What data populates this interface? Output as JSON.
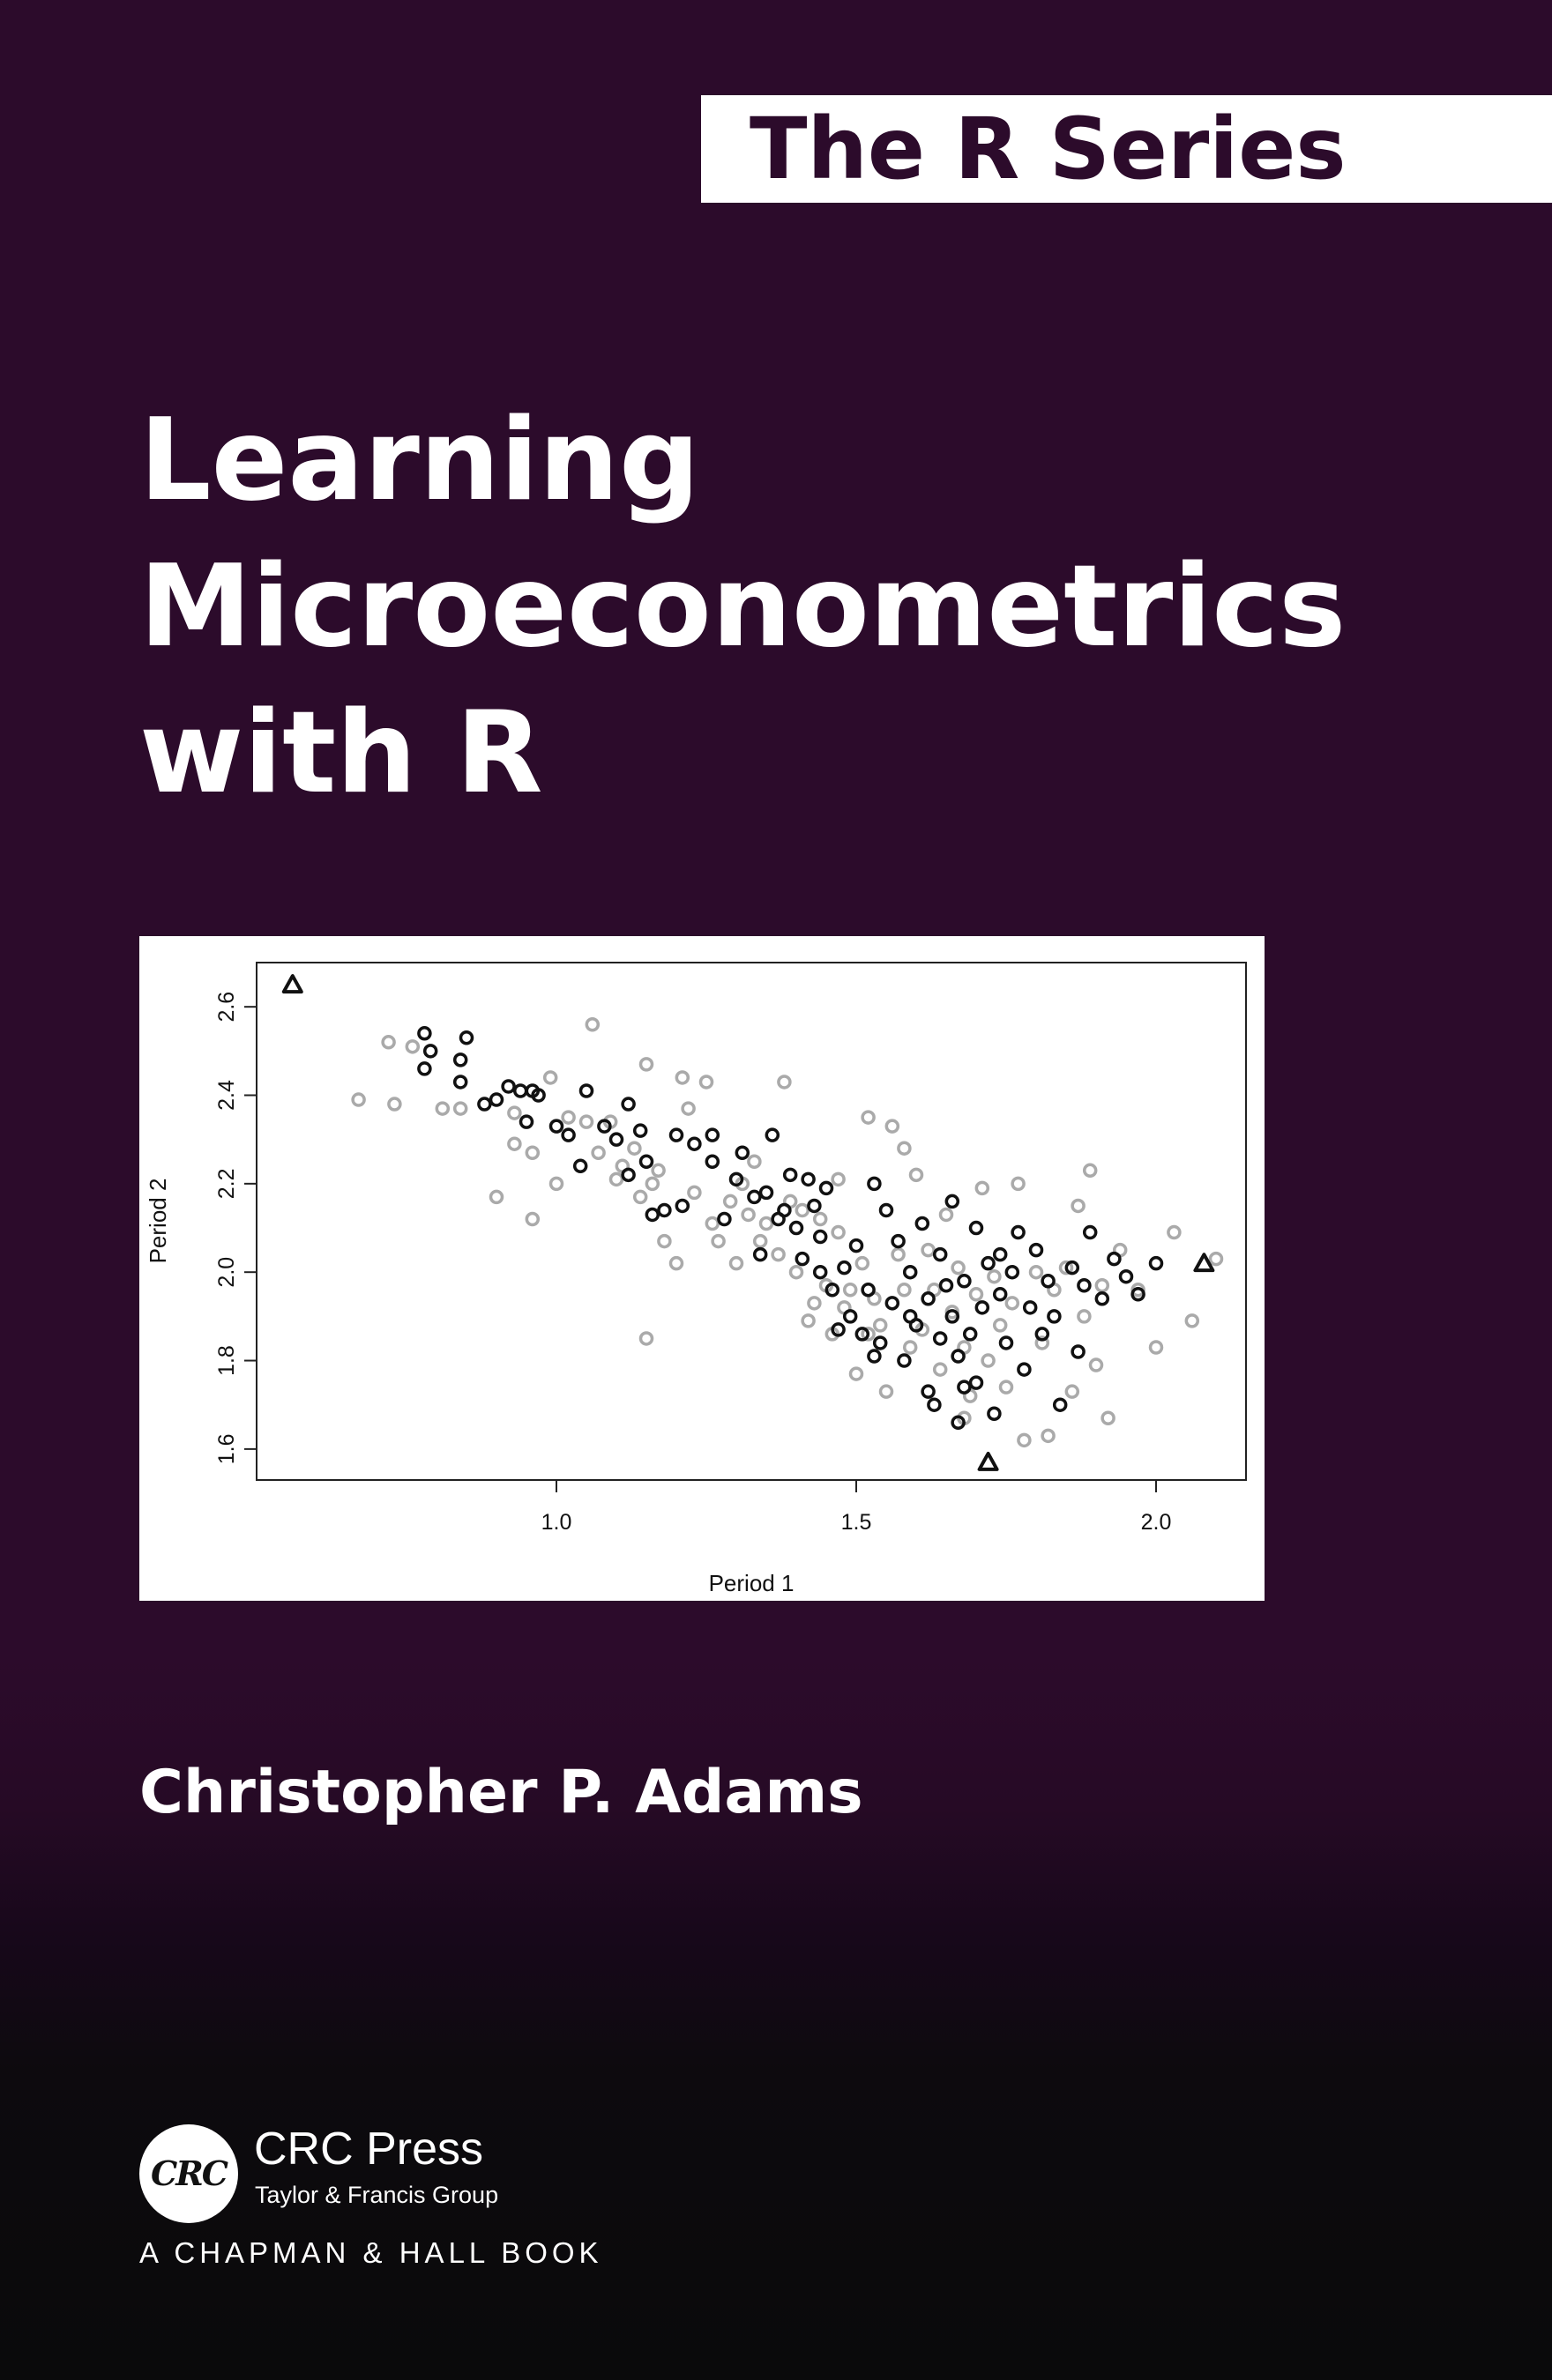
{
  "series": {
    "label": "The R Series"
  },
  "book": {
    "title_lines": [
      "Learning",
      "Microeconometrics",
      "with R"
    ],
    "author": "Christopher P. Adams"
  },
  "publisher": {
    "logo_text": "CRC",
    "name": "CRC Press",
    "group": "Taylor & Francis Group",
    "imprint": "A CHAPMAN & HALL BOOK"
  },
  "colors": {
    "background": "#2c0b2b",
    "banner": "#ffffff",
    "banner_text": "#2c0b2b",
    "title_text": "#ffffff"
  },
  "chart_data": {
    "type": "scatter",
    "title": "",
    "xlabel": "Period 1",
    "ylabel": "Period 2",
    "xlim": [
      0.5,
      2.15
    ],
    "ylim": [
      1.53,
      2.7
    ],
    "x_ticks": [
      1.0,
      1.5,
      2.0
    ],
    "x_tick_labels": [
      "1.0",
      "1.5",
      "2.0"
    ],
    "y_ticks": [
      1.6,
      1.8,
      2.0,
      2.2,
      2.4,
      2.6
    ],
    "y_tick_labels": [
      "1.6",
      "1.8",
      "2.0",
      "2.2",
      "2.4",
      "2.6"
    ],
    "grid": false,
    "legend": "none",
    "series": [
      {
        "marker": "open-circle",
        "color": "#111111",
        "points": [
          [
            0.78,
            2.54
          ],
          [
            0.79,
            2.5
          ],
          [
            0.78,
            2.46
          ],
          [
            0.85,
            2.53
          ],
          [
            0.84,
            2.48
          ],
          [
            0.84,
            2.43
          ],
          [
            0.88,
            2.38
          ],
          [
            0.9,
            2.39
          ],
          [
            0.92,
            2.42
          ],
          [
            0.94,
            2.41
          ],
          [
            0.96,
            2.41
          ],
          [
            0.95,
            2.34
          ],
          [
            0.97,
            2.4
          ],
          [
            1.0,
            2.33
          ],
          [
            1.02,
            2.31
          ],
          [
            1.05,
            2.41
          ],
          [
            1.04,
            2.24
          ],
          [
            1.08,
            2.33
          ],
          [
            1.1,
            2.3
          ],
          [
            1.12,
            2.22
          ],
          [
            1.14,
            2.32
          ],
          [
            1.12,
            2.38
          ],
          [
            1.15,
            2.25
          ],
          [
            1.18,
            2.14
          ],
          [
            1.2,
            2.31
          ],
          [
            1.21,
            2.15
          ],
          [
            1.23,
            2.29
          ],
          [
            1.26,
            2.25
          ],
          [
            1.28,
            2.12
          ],
          [
            1.3,
            2.21
          ],
          [
            1.31,
            2.27
          ],
          [
            1.33,
            2.17
          ],
          [
            1.34,
            2.04
          ],
          [
            1.36,
            2.31
          ],
          [
            1.35,
            2.18
          ],
          [
            1.38,
            2.14
          ],
          [
            1.39,
            2.22
          ],
          [
            1.4,
            2.1
          ],
          [
            1.41,
            2.03
          ],
          [
            1.42,
            2.21
          ],
          [
            1.43,
            2.15
          ],
          [
            1.44,
            2.08
          ],
          [
            1.45,
            2.19
          ],
          [
            1.46,
            1.96
          ],
          [
            1.47,
            1.87
          ],
          [
            1.48,
            2.01
          ],
          [
            1.49,
            1.9
          ],
          [
            1.5,
            2.06
          ],
          [
            1.51,
            1.86
          ],
          [
            1.52,
            1.96
          ],
          [
            1.53,
            2.2
          ],
          [
            1.54,
            1.84
          ],
          [
            1.55,
            2.14
          ],
          [
            1.56,
            1.93
          ],
          [
            1.57,
            2.07
          ],
          [
            1.58,
            1.8
          ],
          [
            1.59,
            2.0
          ],
          [
            1.6,
            1.88
          ],
          [
            1.61,
            2.11
          ],
          [
            1.62,
            1.94
          ],
          [
            1.62,
            1.73
          ],
          [
            1.63,
            1.7
          ],
          [
            1.64,
            2.04
          ],
          [
            1.64,
            1.85
          ],
          [
            1.65,
            1.97
          ],
          [
            1.66,
            1.9
          ],
          [
            1.66,
            2.16
          ],
          [
            1.67,
            1.81
          ],
          [
            1.67,
            1.66
          ],
          [
            1.68,
            1.98
          ],
          [
            1.69,
            1.86
          ],
          [
            1.7,
            2.1
          ],
          [
            1.7,
            1.75
          ],
          [
            1.71,
            1.92
          ],
          [
            1.72,
            2.02
          ],
          [
            1.73,
            1.68
          ],
          [
            1.74,
            1.95
          ],
          [
            1.75,
            1.84
          ],
          [
            1.76,
            2.0
          ],
          [
            1.77,
            2.09
          ],
          [
            1.78,
            1.78
          ],
          [
            1.79,
            1.92
          ],
          [
            1.8,
            2.05
          ],
          [
            1.81,
            1.86
          ],
          [
            1.82,
            1.98
          ],
          [
            1.83,
            1.9
          ],
          [
            1.84,
            1.7
          ],
          [
            1.86,
            2.01
          ],
          [
            1.87,
            1.82
          ],
          [
            1.88,
            1.97
          ],
          [
            1.89,
            2.09
          ],
          [
            1.91,
            1.94
          ],
          [
            1.93,
            2.03
          ],
          [
            1.95,
            1.99
          ],
          [
            1.97,
            1.95
          ],
          [
            2.0,
            2.02
          ],
          [
            1.16,
            2.13
          ],
          [
            1.26,
            2.31
          ],
          [
            1.37,
            2.12
          ],
          [
            1.44,
            2.0
          ],
          [
            1.53,
            1.81
          ],
          [
            1.59,
            1.9
          ],
          [
            1.68,
            1.74
          ],
          [
            1.74,
            2.04
          ]
        ]
      },
      {
        "marker": "open-circle",
        "color": "#aaaaaa",
        "points": [
          [
            0.67,
            2.39
          ],
          [
            0.72,
            2.52
          ],
          [
            0.73,
            2.38
          ],
          [
            0.76,
            2.51
          ],
          [
            0.81,
            2.37
          ],
          [
            0.84,
            2.37
          ],
          [
            0.9,
            2.17
          ],
          [
            0.93,
            2.36
          ],
          [
            0.93,
            2.29
          ],
          [
            0.96,
            2.27
          ],
          [
            0.96,
            2.12
          ],
          [
            0.99,
            2.44
          ],
          [
            1.0,
            2.2
          ],
          [
            1.02,
            2.35
          ],
          [
            1.05,
            2.34
          ],
          [
            1.06,
            2.56
          ],
          [
            1.07,
            2.27
          ],
          [
            1.09,
            2.34
          ],
          [
            1.1,
            2.21
          ],
          [
            1.11,
            2.24
          ],
          [
            1.13,
            2.28
          ],
          [
            1.14,
            2.17
          ],
          [
            1.15,
            2.47
          ],
          [
            1.16,
            2.2
          ],
          [
            1.17,
            2.23
          ],
          [
            1.18,
            2.07
          ],
          [
            1.2,
            2.02
          ],
          [
            1.21,
            2.44
          ],
          [
            1.22,
            2.37
          ],
          [
            1.23,
            2.18
          ],
          [
            1.25,
            2.43
          ],
          [
            1.26,
            2.11
          ],
          [
            1.27,
            2.07
          ],
          [
            1.29,
            2.16
          ],
          [
            1.3,
            2.02
          ],
          [
            1.31,
            2.2
          ],
          [
            1.32,
            2.13
          ],
          [
            1.33,
            2.25
          ],
          [
            1.34,
            2.07
          ],
          [
            1.35,
            2.11
          ],
          [
            1.37,
            2.04
          ],
          [
            1.38,
            2.43
          ],
          [
            1.39,
            2.16
          ],
          [
            1.4,
            2.0
          ],
          [
            1.41,
            2.14
          ],
          [
            1.42,
            1.89
          ],
          [
            1.43,
            1.93
          ],
          [
            1.44,
            2.12
          ],
          [
            1.45,
            1.97
          ],
          [
            1.46,
            1.86
          ],
          [
            1.47,
            2.09
          ],
          [
            1.48,
            1.92
          ],
          [
            1.49,
            1.96
          ],
          [
            1.5,
            1.77
          ],
          [
            1.51,
            2.02
          ],
          [
            1.52,
            2.35
          ],
          [
            1.53,
            1.94
          ],
          [
            1.54,
            1.88
          ],
          [
            1.55,
            1.73
          ],
          [
            1.56,
            2.33
          ],
          [
            1.57,
            2.04
          ],
          [
            1.58,
            1.96
          ],
          [
            1.59,
            1.83
          ],
          [
            1.6,
            2.22
          ],
          [
            1.61,
            1.87
          ],
          [
            1.62,
            2.05
          ],
          [
            1.63,
            1.96
          ],
          [
            1.64,
            1.78
          ],
          [
            1.65,
            2.13
          ],
          [
            1.66,
            1.91
          ],
          [
            1.67,
            2.01
          ],
          [
            1.68,
            1.83
          ],
          [
            1.69,
            1.72
          ],
          [
            1.7,
            1.95
          ],
          [
            1.71,
            2.19
          ],
          [
            1.72,
            1.8
          ],
          [
            1.73,
            1.99
          ],
          [
            1.74,
            1.88
          ],
          [
            1.75,
            1.74
          ],
          [
            1.76,
            1.93
          ],
          [
            1.77,
            2.2
          ],
          [
            1.78,
            1.62
          ],
          [
            1.8,
            2.0
          ],
          [
            1.81,
            1.84
          ],
          [
            1.82,
            1.63
          ],
          [
            1.83,
            1.96
          ],
          [
            1.85,
            2.01
          ],
          [
            1.86,
            1.73
          ],
          [
            1.87,
            2.15
          ],
          [
            1.88,
            1.9
          ],
          [
            1.89,
            2.23
          ],
          [
            1.9,
            1.79
          ],
          [
            1.91,
            1.97
          ],
          [
            1.92,
            1.67
          ],
          [
            1.94,
            2.05
          ],
          [
            1.97,
            1.96
          ],
          [
            2.0,
            1.83
          ],
          [
            2.03,
            2.09
          ],
          [
            2.06,
            1.89
          ],
          [
            2.1,
            2.03
          ],
          [
            1.15,
            1.85
          ],
          [
            1.47,
            2.21
          ],
          [
            1.58,
            2.28
          ],
          [
            1.68,
            1.67
          ],
          [
            1.52,
            1.86
          ]
        ]
      },
      {
        "marker": "triangle",
        "color": "#111111",
        "points": [
          [
            0.56,
            2.65
          ],
          [
            1.72,
            1.57
          ],
          [
            2.08,
            2.02
          ]
        ]
      }
    ]
  }
}
